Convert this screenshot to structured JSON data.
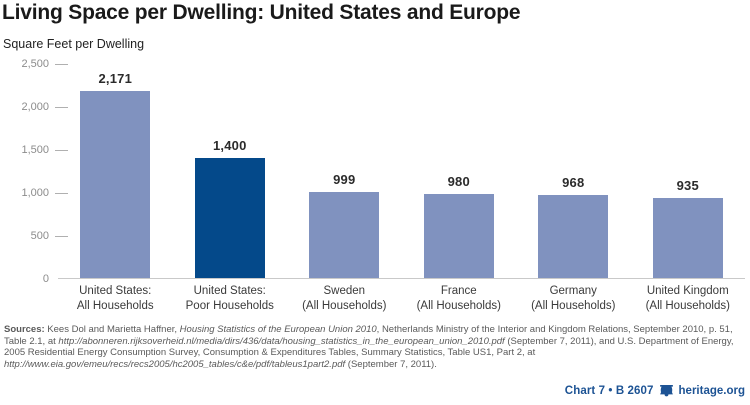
{
  "header": {
    "title": "Living Space per Dwelling: United States and Europe",
    "subtitle": "Square Feet per Dwelling"
  },
  "chart_data": {
    "type": "bar",
    "title": "Living Space per Dwelling: United States and Europe",
    "ylabel": "Square Feet per Dwelling",
    "xlabel": "",
    "categories": [
      "United States: All Households",
      "United States: Poor Households",
      "Sweden (All Households)",
      "France (All Households)",
      "Germany (All Households)",
      "United Kingdom (All Households)"
    ],
    "category_lines": [
      "United States:\nAll Households",
      "United States:\nPoor Households",
      "Sweden\n(All Households)",
      "France\n(All Households)",
      "Germany\n(All Households)",
      "United Kingdom\n(All Households)"
    ],
    "values": [
      2171,
      1400,
      999,
      980,
      968,
      935
    ],
    "value_labels": [
      "2,171",
      "1,400",
      "999",
      "980",
      "968",
      "935"
    ],
    "ylim": [
      0,
      2500
    ],
    "yticks": [
      0,
      500,
      1000,
      1500,
      2000,
      2500
    ],
    "ytick_labels": [
      "0",
      "500",
      "1,000",
      "1,500",
      "2,000",
      "2,500"
    ],
    "grid": "tick-dashes-only, no gridlines, legend none",
    "bar_colors": [
      "#8092bf",
      "#04498a",
      "#8092bf",
      "#8092bf",
      "#8092bf",
      "#8092bf"
    ]
  },
  "sources": {
    "segments": [
      {
        "text": "Sources: ",
        "bold": true
      },
      {
        "text": "Kees Dol and Marietta Haffner, "
      },
      {
        "text": "Housing Statistics of the European Union 2010",
        "italic": true
      },
      {
        "text": ", Netherlands Ministry of the Interior and Kingdom Relations, September 2010, p. 51, Table 2.1, at "
      },
      {
        "text": "http://abonneren.rijksoverheid.nl/media/dirs/436/data/housing_statistics_in_the_european_union_2010.pdf",
        "italic": true
      },
      {
        "text": " (September 7, 2011), and U.S. Department of Energy, 2005 Residential Energy Consumption Survey, Consumption & Expenditures Tables, Summary Statistics, Table US1, Part 2, at "
      },
      {
        "text": "http://www.eia.gov/emeu/recs/recs2005/hc2005_tables/c&e/pdf/tableus1part2.pdf",
        "italic": true
      },
      {
        "text": " (September 7, 2011)."
      }
    ]
  },
  "footer": {
    "chart_label": "Chart 7 • B 2607",
    "site": "heritage.org",
    "bell_icon": "liberty-bell-icon"
  },
  "colors": {
    "bar_light": "#8092bf",
    "bar_dark": "#04498a",
    "footer_blue": "#1d5394",
    "source_gray": "#5a5a5a",
    "axis_gray": "#8c8c8c",
    "baseline_gray": "#c9c9c9"
  }
}
